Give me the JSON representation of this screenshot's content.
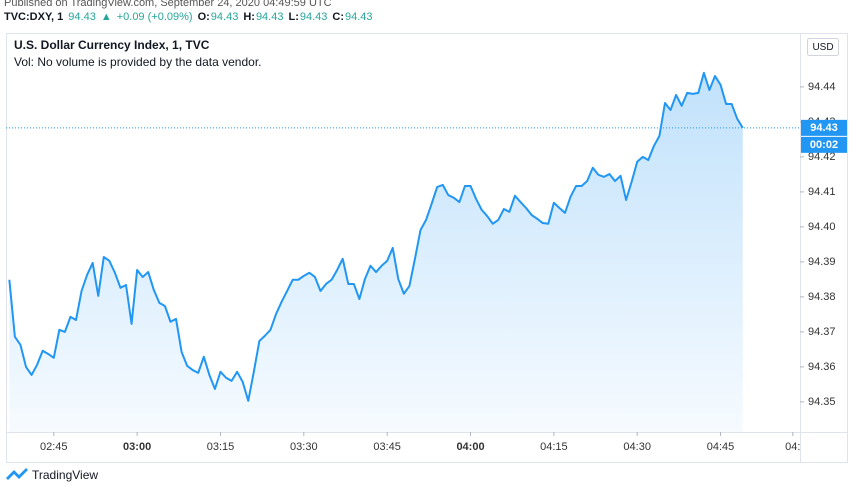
{
  "header": {
    "published": "Published on TradingView.com, September 24, 2020 04:49:59 UTC",
    "symbol": "TVC:DXY, 1",
    "last": "94.43",
    "arrow": "▲",
    "change": "+0.09 (+0.09%)",
    "open_label": "O:",
    "open": "94.43",
    "high_label": "H:",
    "high": "94.43",
    "low_label": "L:",
    "low": "94.43",
    "close_label": "C:",
    "close": "94.43"
  },
  "footer": {
    "brand": "TradingView"
  },
  "chart_data": {
    "type": "area",
    "title": "U.S. Dollar Currency Index, 1, TVC",
    "subtitle": "Vol: No volume is provided by the data vendor.",
    "currency": "USD",
    "price_label": "94.43",
    "countdown": "00:02",
    "color": "#2196f3",
    "x": [
      157,
      158,
      159,
      160,
      161,
      162,
      163,
      164,
      165,
      166,
      167,
      168,
      169,
      170,
      171,
      172,
      173,
      174,
      175,
      176,
      177,
      178,
      179,
      180,
      181,
      182,
      183,
      184,
      185,
      186,
      187,
      188,
      189,
      190,
      191,
      192,
      193,
      194,
      195,
      196,
      197,
      198,
      199,
      200,
      201,
      202,
      203,
      204,
      205,
      206,
      207,
      208,
      209,
      210,
      211,
      212,
      213,
      214,
      215,
      216,
      217,
      218,
      219,
      220,
      221,
      222,
      223,
      224,
      225,
      226,
      227,
      228,
      229,
      230,
      231,
      232,
      233,
      234,
      235,
      236,
      237,
      238,
      239,
      240,
      241,
      242,
      243,
      244,
      245,
      246,
      247,
      248,
      249,
      250,
      251,
      252,
      253,
      254,
      255,
      256,
      257,
      258,
      259,
      260,
      261,
      262,
      263,
      264,
      265,
      266,
      267,
      268,
      269,
      270,
      271,
      272,
      273,
      274,
      275,
      276,
      277,
      278,
      279,
      280,
      281,
      282,
      283,
      284,
      285,
      286,
      287,
      288,
      289
    ],
    "values": [
      94.3849,
      94.3686,
      94.3663,
      94.36,
      94.3577,
      94.3606,
      94.3646,
      94.3637,
      94.3626,
      94.3706,
      94.37,
      94.3743,
      94.3734,
      94.3817,
      94.3863,
      94.3897,
      94.3803,
      94.3914,
      94.3903,
      94.3869,
      94.3826,
      94.3834,
      94.3723,
      94.3877,
      94.3857,
      94.3871,
      94.382,
      94.3783,
      94.3774,
      94.3729,
      94.3737,
      94.3643,
      94.3603,
      94.3591,
      94.3583,
      94.3629,
      94.3577,
      94.3537,
      94.3586,
      94.3569,
      94.356,
      94.3586,
      94.3557,
      94.3503,
      94.3586,
      94.3674,
      94.3689,
      94.3706,
      94.3751,
      94.3786,
      94.3817,
      94.3849,
      94.3849,
      94.386,
      94.3869,
      94.3857,
      94.3817,
      94.3837,
      94.3849,
      94.3877,
      94.3909,
      94.3837,
      94.3837,
      94.3794,
      94.3851,
      94.3889,
      94.3871,
      94.3889,
      94.3903,
      94.394,
      94.3851,
      94.3809,
      94.3831,
      94.3909,
      94.3991,
      94.402,
      94.4066,
      94.4114,
      94.412,
      94.4091,
      94.4083,
      94.4071,
      94.4117,
      94.4117,
      94.408,
      94.4049,
      94.4031,
      94.4009,
      94.402,
      94.4051,
      94.4043,
      94.4089,
      94.4071,
      94.4054,
      94.4034,
      94.4023,
      94.4011,
      94.4009,
      94.4069,
      94.4054,
      94.404,
      94.4086,
      94.4117,
      94.4117,
      94.4131,
      94.4169,
      94.4149,
      94.4143,
      94.4151,
      94.4131,
      94.4146,
      94.4077,
      94.4129,
      94.4186,
      94.42,
      94.4191,
      94.4231,
      94.426,
      94.4354,
      94.4334,
      94.4377,
      94.4346,
      94.4383,
      94.438,
      94.4383,
      94.444,
      94.4391,
      94.4431,
      94.4406,
      94.4351,
      94.4351,
      94.4309,
      94.4283
    ],
    "xlim": [
      156.4,
      299.3
    ],
    "xticks": [
      {
        "value": 165,
        "label": "02:45"
      },
      {
        "value": 180,
        "label": "03:00"
      },
      {
        "value": 195,
        "label": "03:15"
      },
      {
        "value": 210,
        "label": "03:30"
      },
      {
        "value": 225,
        "label": "03:45"
      },
      {
        "value": 240,
        "label": "04:00"
      },
      {
        "value": 255,
        "label": "04:15"
      },
      {
        "value": 270,
        "label": "04:30"
      },
      {
        "value": 285,
        "label": "04:45"
      },
      {
        "value": 298,
        "label": "04:"
      }
    ],
    "ylim": [
      94.3414,
      94.4554
    ],
    "yticks": [
      94.35,
      94.36,
      94.37,
      94.38,
      94.39,
      {
        "value": 94.4,
        "label": "94.40"
      },
      94.41,
      94.42,
      94.43,
      94.44
    ],
    "grid": false
  }
}
